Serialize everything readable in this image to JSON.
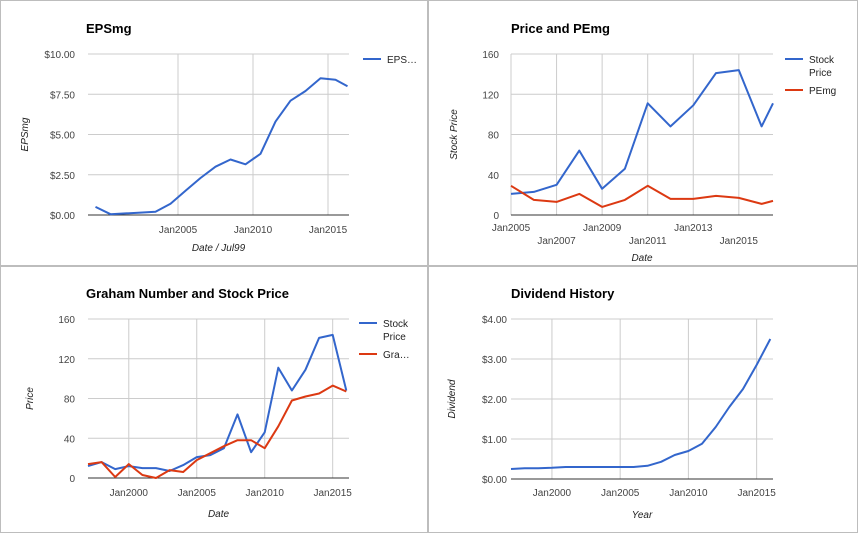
{
  "chart_data": [
    {
      "type": "line",
      "title": "EPSmg",
      "xlabel": "Date / Jul99",
      "ylabel": "EPSmg",
      "xlim": [
        1999.0,
        2016.4
      ],
      "ylim": [
        0,
        10
      ],
      "yticks": [
        0,
        2.5,
        5,
        7.5,
        10
      ],
      "ytick_labels": [
        "$0.00",
        "$2.50",
        "$5.00",
        "$7.50",
        "$10.00"
      ],
      "xticks": [
        2005,
        2010,
        2015
      ],
      "xtick_labels": [
        "Jan2005",
        "Jan2010",
        "Jan2015"
      ],
      "legend": "right",
      "series": [
        {
          "name": "EPS…",
          "color": "#3366cc",
          "x": [
            1999.5,
            2000.5,
            2001.5,
            2002.5,
            2003.5,
            2004.5,
            2005.5,
            2006.5,
            2007.5,
            2008.5,
            2009.5,
            2010.5,
            2011.5,
            2012.5,
            2013.5,
            2014.5,
            2015.5,
            2016.3
          ],
          "y": [
            0.5,
            0.05,
            0.1,
            0.15,
            0.2,
            0.7,
            1.5,
            2.3,
            3.0,
            3.45,
            3.15,
            3.8,
            5.8,
            7.1,
            7.7,
            8.5,
            8.4,
            8.0
          ]
        }
      ]
    },
    {
      "type": "line",
      "title": "Price and PEmg",
      "xlabel": "Date",
      "ylabel": "Stock Price",
      "xlim": [
        2005.0,
        2016.5
      ],
      "ylim": [
        0,
        160
      ],
      "yticks": [
        0,
        40,
        80,
        120,
        160
      ],
      "ytick_labels": [
        "0",
        "40",
        "80",
        "120",
        "160"
      ],
      "xticks": [
        2005,
        2007,
        2009,
        2011,
        2013,
        2015
      ],
      "xtick_labels": [
        "Jan2005",
        "Jan2007",
        "Jan2009",
        "Jan2011",
        "Jan2013",
        "Jan2015"
      ],
      "legend": "right",
      "series": [
        {
          "name": "Stock Price",
          "color": "#3366cc",
          "x": [
            2005.0,
            2006.0,
            2007.0,
            2008.0,
            2009.0,
            2010.0,
            2011.0,
            2012.0,
            2013.0,
            2014.0,
            2015.0,
            2016.0,
            2016.5
          ],
          "y": [
            21,
            23,
            30,
            64,
            26,
            46,
            111,
            88,
            109,
            141,
            144,
            88,
            111
          ]
        },
        {
          "name": "PEmg",
          "color": "#dc3912",
          "x": [
            2005.0,
            2006.0,
            2007.0,
            2008.0,
            2009.0,
            2010.0,
            2011.0,
            2012.0,
            2013.0,
            2014.0,
            2015.0,
            2016.0,
            2016.5
          ],
          "y": [
            29,
            15,
            13,
            21,
            8,
            15,
            29,
            16,
            16,
            19,
            17,
            11,
            14
          ]
        }
      ]
    },
    {
      "type": "line",
      "title": "Graham Number and Stock Price",
      "xlabel": "Date",
      "ylabel": "Price",
      "xlim": [
        1997.0,
        2016.2
      ],
      "ylim": [
        0,
        160
      ],
      "yticks": [
        0,
        40,
        80,
        120,
        160
      ],
      "ytick_labels": [
        "0",
        "40",
        "80",
        "120",
        "160"
      ],
      "xticks": [
        2000,
        2005,
        2010,
        2015
      ],
      "xtick_labels": [
        "Jan2000",
        "Jan2005",
        "Jan2010",
        "Jan2015"
      ],
      "legend": "right",
      "series": [
        {
          "name": "Stock Price",
          "color": "#3366cc",
          "x": [
            1997.0,
            1998.0,
            1999.0,
            2000.0,
            2001.0,
            2002.0,
            2003.0,
            2004.0,
            2005.0,
            2006.0,
            2007.0,
            2008.0,
            2009.0,
            2010.0,
            2011.0,
            2012.0,
            2013.0,
            2014.0,
            2015.0,
            2016.0
          ],
          "y": [
            12,
            16,
            9,
            12,
            10,
            10,
            7,
            13,
            21,
            23,
            30,
            64,
            26,
            46,
            111,
            88,
            109,
            141,
            144,
            88
          ]
        },
        {
          "name": "Gra…",
          "color": "#dc3912",
          "x": [
            1997.0,
            1998.0,
            1999.0,
            2000.0,
            2001.0,
            2002.0,
            2003.0,
            2004.0,
            2005.0,
            2006.0,
            2007.0,
            2008.0,
            2009.0,
            2010.0,
            2011.0,
            2012.0,
            2013.0,
            2014.0,
            2015.0,
            2016.0
          ],
          "y": [
            14,
            16,
            1,
            14,
            3,
            0,
            8,
            6,
            18,
            25,
            32,
            38,
            38,
            30,
            52,
            78,
            82,
            85,
            93,
            87
          ]
        }
      ]
    },
    {
      "type": "line",
      "title": "Dividend History",
      "xlabel": "Year",
      "ylabel": "Dividend",
      "xlim": [
        1997.0,
        2016.2
      ],
      "ylim": [
        0,
        4
      ],
      "yticks": [
        0,
        1,
        2,
        3,
        4
      ],
      "ytick_labels": [
        "$0.00",
        "$1.00",
        "$2.00",
        "$3.00",
        "$4.00"
      ],
      "xticks": [
        2000,
        2005,
        2010,
        2015
      ],
      "xtick_labels": [
        "Jan2000",
        "Jan2005",
        "Jan2010",
        "Jan2015"
      ],
      "legend": "none",
      "series": [
        {
          "name": "",
          "color": "#3366cc",
          "x": [
            1997.0,
            1998.0,
            1999.0,
            2000.0,
            2001.0,
            2002.0,
            2003.0,
            2004.0,
            2005.0,
            2006.0,
            2007.0,
            2008.0,
            2009.0,
            2010.0,
            2011.0,
            2012.0,
            2013.0,
            2014.0,
            2015.0,
            2016.0
          ],
          "y": [
            0.25,
            0.27,
            0.27,
            0.28,
            0.3,
            0.3,
            0.3,
            0.3,
            0.3,
            0.3,
            0.33,
            0.43,
            0.6,
            0.7,
            0.88,
            1.3,
            1.8,
            2.25,
            2.85,
            3.5
          ]
        }
      ]
    }
  ]
}
